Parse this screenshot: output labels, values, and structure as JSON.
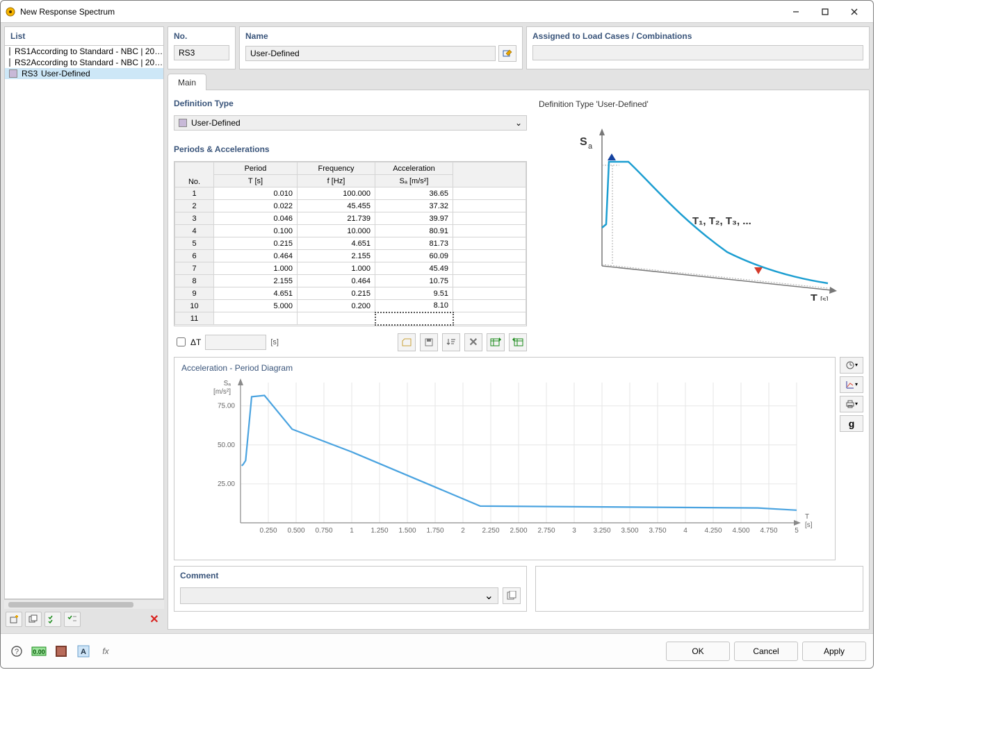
{
  "window": {
    "title": "New Response Spectrum"
  },
  "list": {
    "header": "List",
    "items": [
      {
        "code": "RS1",
        "label": "According to Standard - NBC | 20…",
        "swatch": "#b6f3f6"
      },
      {
        "code": "RS2",
        "label": "According to Standard - NBC | 20…",
        "swatch": "#f5c233"
      },
      {
        "code": "RS3",
        "label": "User-Defined",
        "swatch": "#c8b9d8",
        "selected": true
      }
    ]
  },
  "fields": {
    "noLabel": "No.",
    "no": "RS3",
    "nameLabel": "Name",
    "name": "User-Defined",
    "assignLabel": "Assigned to Load Cases / Combinations",
    "assign": ""
  },
  "tab": {
    "main": "Main"
  },
  "definition": {
    "sectionTitle": "Definition Type",
    "type": "User-Defined",
    "schematicTitle": "Definition Type 'User-Defined'"
  },
  "periods": {
    "title": "Periods & Accelerations",
    "columns": {
      "no": "No.",
      "period_top": "Period",
      "period_bot": "T [s]",
      "freq_top": "Frequency",
      "freq_bot": "f [Hz]",
      "acc_top": "Acceleration",
      "acc_bot": "Sₐ [m/s²]"
    },
    "rows": [
      {
        "n": "1",
        "T": "0.010",
        "f": "100.000",
        "Sa": "36.65"
      },
      {
        "n": "2",
        "T": "0.022",
        "f": "45.455",
        "Sa": "37.32"
      },
      {
        "n": "3",
        "T": "0.046",
        "f": "21.739",
        "Sa": "39.97"
      },
      {
        "n": "4",
        "T": "0.100",
        "f": "10.000",
        "Sa": "80.91"
      },
      {
        "n": "5",
        "T": "0.215",
        "f": "4.651",
        "Sa": "81.73"
      },
      {
        "n": "6",
        "T": "0.464",
        "f": "2.155",
        "Sa": "60.09"
      },
      {
        "n": "7",
        "T": "1.000",
        "f": "1.000",
        "Sa": "45.49"
      },
      {
        "n": "8",
        "T": "2.155",
        "f": "0.464",
        "Sa": "10.75"
      },
      {
        "n": "9",
        "T": "4.651",
        "f": "0.215",
        "Sa": "9.51"
      },
      {
        "n": "10",
        "T": "5.000",
        "f": "0.200",
        "Sa": "8.10"
      }
    ],
    "emptyRow": "11",
    "dtLabel": "ΔT",
    "dtUnit": "[s]"
  },
  "chart": {
    "title": "Acceleration - Period Diagram",
    "yLabel": "Sₐ\n[m/s²]",
    "xLabel": "T\n[s]",
    "yTicks": [
      25,
      50,
      75
    ],
    "xTicks": [
      0.25,
      0.5,
      0.75,
      1.0,
      1.25,
      1.5,
      1.75,
      2.0,
      2.25,
      2.5,
      2.75,
      3.0,
      3.25,
      3.5,
      3.75,
      4.0,
      4.25,
      4.5,
      4.75,
      5.0
    ],
    "xlim": [
      0,
      5.0
    ],
    "ylim": [
      0,
      90
    ],
    "lineColor": "#4aa3e0",
    "axisColor": "#8a8a8a",
    "gridColor": "#e6e6e6"
  },
  "comment": {
    "title": "Comment",
    "value": ""
  },
  "buttons": {
    "ok": "OK",
    "cancel": "Cancel",
    "apply": "Apply"
  }
}
